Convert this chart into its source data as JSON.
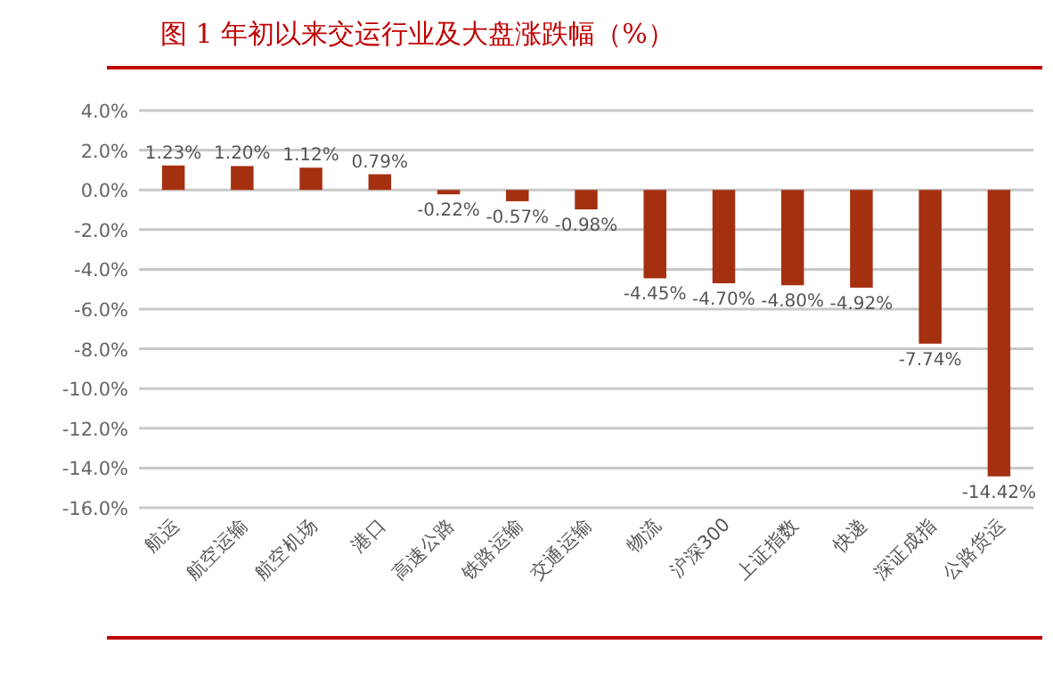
{
  "chart_data": {
    "type": "bar",
    "title": "图 1   年初以来交运行业及大盘涨跌幅（%）",
    "categories": [
      "航运",
      "航空运输",
      "航空机场",
      "港口",
      "高速公路",
      "铁路运输",
      "交通运输",
      "物流",
      "沪深300",
      "上证指数",
      "快递",
      "深证成指",
      "公路货运"
    ],
    "values": [
      1.23,
      1.2,
      1.12,
      0.79,
      -0.22,
      -0.57,
      -0.98,
      -4.45,
      -4.7,
      -4.8,
      -4.92,
      -7.74,
      -14.42
    ],
    "value_labels": [
      "1.23%",
      "1.20%",
      "1.12%",
      "0.79%",
      "-0.22%",
      "-0.57%",
      "-0.98%",
      "-4.45%",
      "-4.70%",
      "-4.80%",
      "-4.92%",
      "-7.74%",
      "-14.42%"
    ],
    "color": "#a5300f",
    "ylim": [
      -16,
      4
    ],
    "yticks": [
      {
        "value": -16,
        "label": "-16.0%"
      },
      {
        "value": -14,
        "label": "-14.0%"
      },
      {
        "value": -12,
        "label": "-12.0%"
      },
      {
        "value": -10,
        "label": "-10.0%"
      },
      {
        "value": -8,
        "label": "-8.0%"
      },
      {
        "value": -6,
        "label": "-6.0%"
      },
      {
        "value": -4,
        "label": "-4.0%"
      },
      {
        "value": -2,
        "label": "-2.0%"
      },
      {
        "value": 0,
        "label": "0.0%"
      },
      {
        "value": 2,
        "label": "2.0%"
      },
      {
        "value": 4,
        "label": "4.0%"
      }
    ],
    "grid": "y"
  }
}
